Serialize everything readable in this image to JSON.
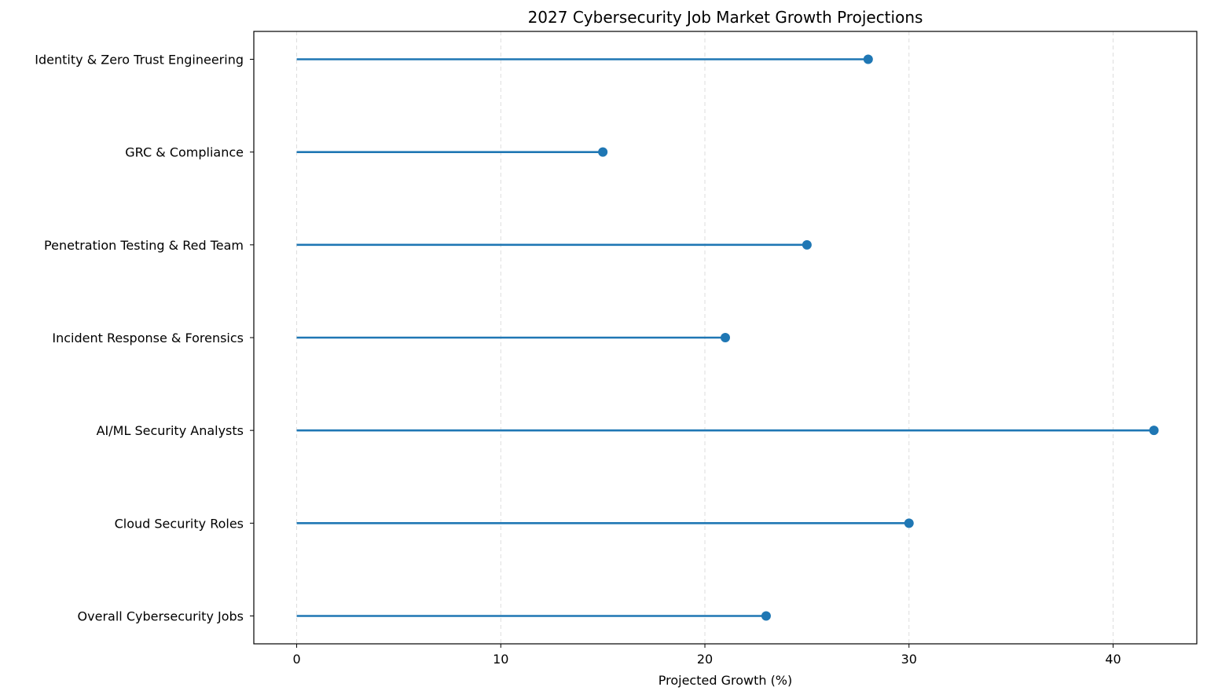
{
  "chart_data": {
    "type": "lollipop",
    "orientation": "horizontal",
    "title": "2027 Cybersecurity Job Market Growth Projections",
    "xlabel": "Projected Growth (%)",
    "ylabel": "",
    "categories": [
      "Overall Cybersecurity Jobs",
      "Cloud Security Roles",
      "AI/ML Security Analysts",
      "Incident Response & Forensics",
      "Penetration Testing & Red Team",
      "GRC & Compliance",
      "Identity & Zero Trust Engineering"
    ],
    "values": [
      23,
      30,
      42,
      21,
      25,
      15,
      28
    ],
    "xlim": [
      -2.1,
      44.1
    ],
    "xticks": [
      0,
      10,
      20,
      30,
      40
    ],
    "grid": {
      "x": true,
      "y": false,
      "style": "dashed"
    },
    "color": "#1f77b4"
  }
}
